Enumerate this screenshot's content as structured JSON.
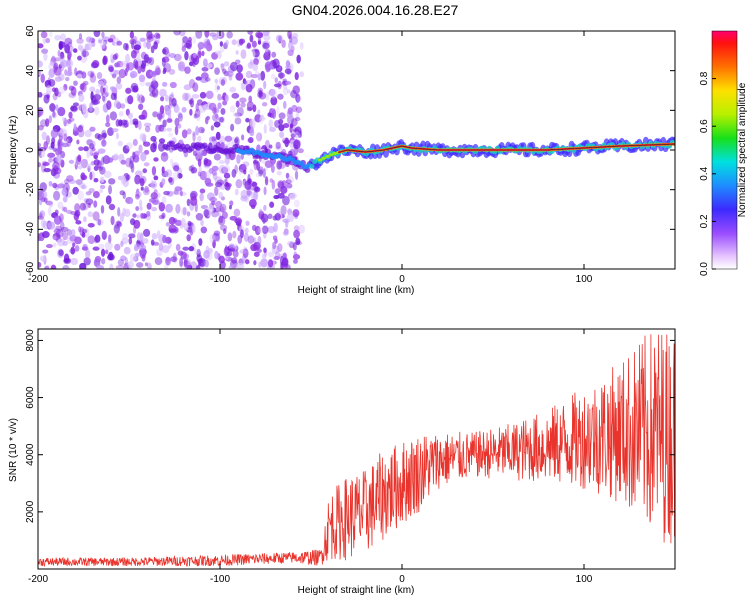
{
  "title": "GN04.2026.004.16.28.E27",
  "colors": {
    "signal": "#e8342c",
    "spectral_track": "#ff2a2a",
    "scatter": "#7a1fe0",
    "axis": "#000000"
  },
  "chart_data": [
    {
      "type": "heatmap",
      "title": "GN04.2026.004.16.28.E27",
      "xlabel": "Height of straight line (km)",
      "ylabel": "Frequency (Hz)",
      "xlim": [
        -200,
        150
      ],
      "ylim": [
        -60,
        60
      ],
      "x_ticks": [
        -200,
        -100,
        0,
        100
      ],
      "x_tick_labels": [
        "-200",
        "-100",
        "0",
        "100"
      ],
      "y_ticks": [
        -60,
        -40,
        -20,
        0,
        20,
        40,
        60
      ],
      "y_tick_labels": [
        "-60",
        "-40",
        "-20",
        "0",
        "20",
        "40",
        "60"
      ],
      "noise_region_x": [
        -200,
        -55
      ],
      "ridge": {
        "x": [
          -130,
          -110,
          -90,
          -75,
          -60,
          -52,
          -45,
          -38,
          -30,
          -20,
          -10,
          0,
          5,
          20,
          50,
          80,
          100,
          120,
          150
        ],
        "y": [
          2,
          1,
          0,
          -2,
          -5,
          -9,
          -5,
          -2,
          0,
          -1,
          0,
          2,
          1,
          0,
          0,
          0,
          1,
          2,
          3
        ]
      },
      "colorbar": {
        "label": "Normalized spectral amplitude",
        "range": [
          0.0,
          1.0
        ],
        "ticks": [
          0.0,
          0.2,
          0.4,
          0.6,
          0.8
        ],
        "tick_labels": [
          "0.0",
          "0.2",
          "0.4",
          "0.6",
          "0.8"
        ]
      }
    },
    {
      "type": "line",
      "xlabel": "Height of straight line (km)",
      "ylabel": "SNR (10 * v/v)",
      "xlim": [
        -200,
        150
      ],
      "ylim": [
        0,
        8400
      ],
      "x_ticks": [
        -200,
        -100,
        0,
        100
      ],
      "x_tick_labels": [
        "-200",
        "-100",
        "0",
        "100"
      ],
      "y_ticks": [
        2000,
        4000,
        6000,
        8000
      ],
      "y_tick_labels": [
        "2000",
        "4000",
        "6000",
        "8000"
      ],
      "series": [
        {
          "name": "SNR",
          "x": [
            -200,
            -150,
            -100,
            -60,
            -45,
            -40,
            -30,
            -20,
            -10,
            0,
            10,
            20,
            40,
            60,
            80,
            100,
            120,
            130,
            140,
            150
          ],
          "values": [
            250,
            250,
            300,
            400,
            400,
            1500,
            1800,
            2000,
            2600,
            3000,
            3400,
            3800,
            4000,
            4100,
            4300,
            4600,
            4800,
            4800,
            4800,
            4600
          ],
          "spread": [
            150,
            150,
            200,
            200,
            300,
            1200,
            1500,
            1500,
            1600,
            1500,
            1400,
            1000,
            800,
            1000,
            1300,
            1800,
            2500,
            3200,
            3800,
            3800
          ]
        }
      ]
    }
  ]
}
